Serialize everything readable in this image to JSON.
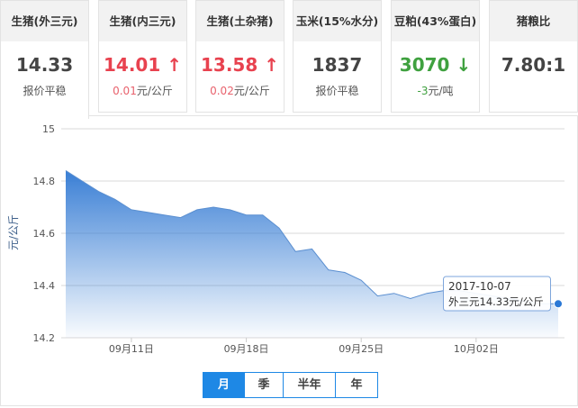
{
  "cards": [
    {
      "title": "生猪(外三元)",
      "value": "14.33",
      "sub": "报价平稳",
      "trend": "flat"
    },
    {
      "title": "生猪(内三元)",
      "value": "14.01",
      "arrow": "↑",
      "sub_num": "0.01",
      "sub_unit": "元/公斤",
      "trend": "up"
    },
    {
      "title": "生猪(土杂猪)",
      "value": "13.58",
      "arrow": "↑",
      "sub_num": "0.02",
      "sub_unit": "元/公斤",
      "trend": "up"
    },
    {
      "title": "玉米(15%水分)",
      "value": "1837",
      "sub": "报价平稳",
      "trend": "flat"
    },
    {
      "title": "豆粕(43%蛋白)",
      "value": "3070",
      "arrow": "↓",
      "sub_num": "-3",
      "sub_unit": "元/吨",
      "trend": "down"
    },
    {
      "title": "猪粮比",
      "value": "7.80:1",
      "sub": "",
      "trend": "flat"
    }
  ],
  "colors": {
    "up": "#e8424f",
    "down": "#3fa13f",
    "accent": "#1e88e5",
    "line": "#5b8fd0"
  },
  "chart_data": {
    "type": "area",
    "ylabel": "元/公斤",
    "ylim": [
      14.2,
      15
    ],
    "yticks": [
      "14.2",
      "14.4",
      "14.6",
      "14.8",
      "15"
    ],
    "xtick_labels": [
      {
        "date": "2017-09-11",
        "label": "09月11日"
      },
      {
        "date": "2017-09-18",
        "label": "09月18日"
      },
      {
        "date": "2017-09-25",
        "label": "09月25日"
      },
      {
        "date": "2017-10-02",
        "label": "10月02日"
      }
    ],
    "x_start": "2017-09-07",
    "x": [
      "2017-09-07",
      "2017-09-08",
      "2017-09-09",
      "2017-09-10",
      "2017-09-11",
      "2017-09-12",
      "2017-09-13",
      "2017-09-14",
      "2017-09-15",
      "2017-09-16",
      "2017-09-17",
      "2017-09-18",
      "2017-09-19",
      "2017-09-20",
      "2017-09-21",
      "2017-09-22",
      "2017-09-23",
      "2017-09-24",
      "2017-09-25",
      "2017-09-26",
      "2017-09-27",
      "2017-09-28",
      "2017-09-29",
      "2017-09-30",
      "2017-10-01",
      "2017-10-02",
      "2017-10-03",
      "2017-10-04",
      "2017-10-05",
      "2017-10-06",
      "2017-10-07"
    ],
    "values": [
      14.84,
      14.8,
      14.76,
      14.73,
      14.69,
      14.68,
      14.67,
      14.66,
      14.69,
      14.7,
      14.69,
      14.67,
      14.67,
      14.62,
      14.53,
      14.54,
      14.46,
      14.45,
      14.42,
      14.36,
      14.37,
      14.35,
      14.37,
      14.38,
      14.38,
      14.37,
      14.36,
      14.35,
      14.34,
      14.33,
      14.33
    ],
    "grid": true,
    "tooltip": {
      "date": "2017-10-07",
      "text": "外三元14.33元/公斤"
    }
  },
  "periods": [
    "月",
    "季",
    "半年",
    "年"
  ],
  "active_period": "月"
}
